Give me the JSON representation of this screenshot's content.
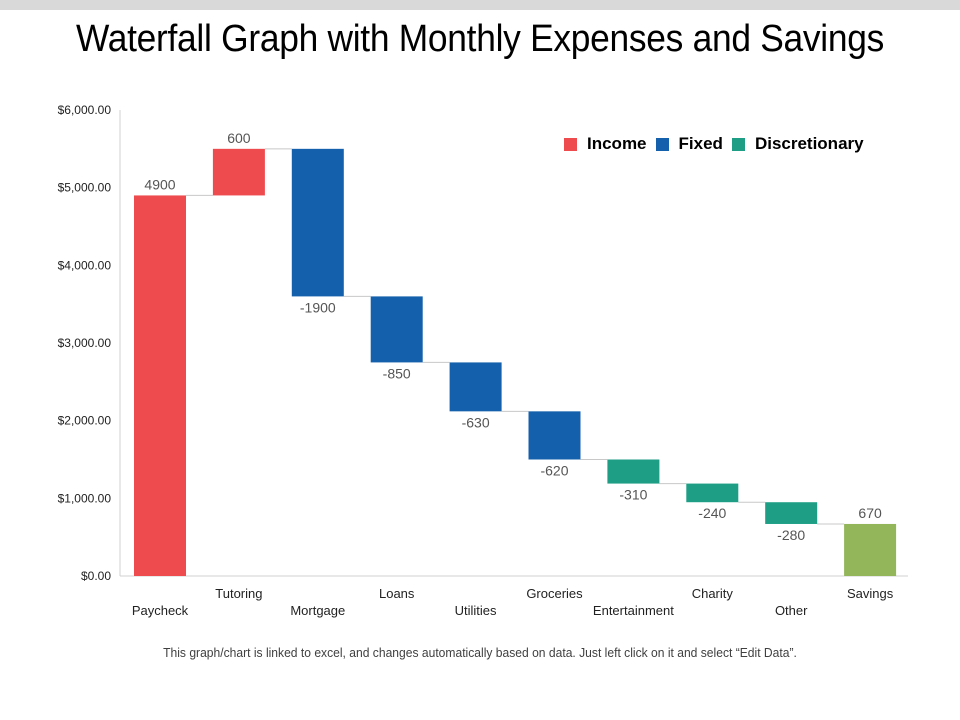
{
  "page": {
    "title": "Waterfall Graph with Monthly Expenses and Savings",
    "footnote": "This graph/chart is linked to excel, and changes automatically based on data. Just left click on it and select “Edit Data”."
  },
  "colors": {
    "income": "#ee4b4e",
    "fixed": "#1560ac",
    "discretionary": "#1d9e85",
    "total": "#94b65a",
    "axis": "#d0d0d0",
    "connector": "#c8c8c8",
    "label": "#555555"
  },
  "chart_data": {
    "type": "bar",
    "subtype": "waterfall",
    "title": "Waterfall Graph with Monthly Expenses and Savings",
    "xlabel": "",
    "ylabel": "",
    "ylim": [
      0,
      6000
    ],
    "yticks": [
      0,
      1000,
      2000,
      3000,
      4000,
      5000,
      6000
    ],
    "ytick_labels": [
      "$0.00",
      "$1,000.00",
      "$2,000.00",
      "$3,000.00",
      "$4,000.00",
      "$5,000.00",
      "$6,000.00"
    ],
    "grid": false,
    "legend": {
      "placement": "top-right",
      "entries": [
        {
          "name": "Income",
          "key": "income"
        },
        {
          "name": "Fixed",
          "key": "fixed"
        },
        {
          "name": "Discretionary",
          "key": "discretionary"
        }
      ]
    },
    "categories": [
      "Paycheck",
      "Tutoring",
      "Mortgage",
      "Loans",
      "Utilities",
      "Groceries",
      "Entertainment",
      "Charity",
      "Other",
      "Savings"
    ],
    "values": [
      4900,
      600,
      -1900,
      -850,
      -630,
      -620,
      -310,
      -240,
      -280,
      670
    ],
    "data_labels": [
      "4900",
      "600",
      "-1900",
      "-850",
      "-630",
      "-620",
      "-310",
      "-240",
      "-280",
      "670"
    ],
    "groups": [
      "income",
      "income",
      "fixed",
      "fixed",
      "fixed",
      "fixed",
      "discretionary",
      "discretionary",
      "discretionary",
      "total"
    ],
    "is_total": [
      false,
      false,
      false,
      false,
      false,
      false,
      false,
      false,
      false,
      true
    ]
  }
}
